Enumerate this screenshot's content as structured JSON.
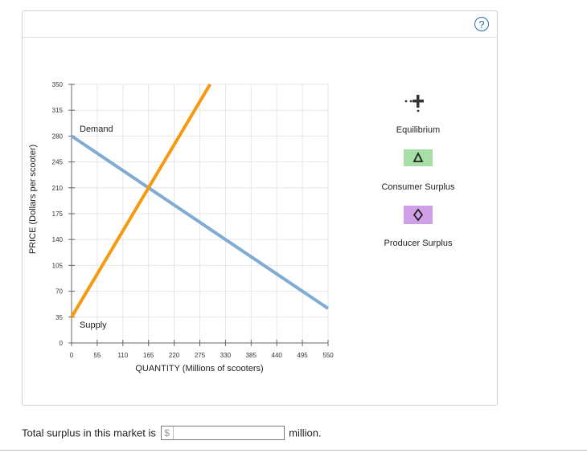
{
  "chart_data": {
    "type": "line",
    "xlabel": "QUANTITY (Millions of scooters)",
    "ylabel": "PRICE (Dollars per scooter)",
    "x_ticks": [
      0,
      55,
      110,
      165,
      220,
      275,
      330,
      385,
      440,
      495,
      550
    ],
    "y_ticks": [
      0,
      35,
      70,
      105,
      140,
      175,
      210,
      245,
      280,
      315,
      350
    ],
    "xlim": [
      0,
      550
    ],
    "ylim": [
      0,
      350
    ],
    "grid": true,
    "series": [
      {
        "name": "Demand",
        "color": "#80acd4",
        "x": [
          0,
          550
        ],
        "y": [
          280,
          46.7
        ]
      },
      {
        "name": "Supply",
        "color": "#f7990f",
        "x": [
          0,
          297
        ],
        "y": [
          35,
          350
        ]
      }
    ],
    "annotations": [
      {
        "text": "Demand",
        "x": 18,
        "y": 288
      },
      {
        "text": "Supply",
        "x": 18,
        "y": 20
      }
    ]
  },
  "legend": {
    "items": [
      {
        "label": "Equilibrium",
        "icon": "equilibrium-cross-icon"
      },
      {
        "label": "Consumer Surplus",
        "icon": "triangle-icon",
        "color": "#a6dfa6"
      },
      {
        "label": "Producer Surplus",
        "icon": "diamond-icon",
        "color": "#cf9fe8"
      }
    ]
  },
  "help_icon": "?",
  "question": {
    "prefix": "Total surplus in this market is",
    "currency": "$",
    "suffix": "million.",
    "value": ""
  }
}
